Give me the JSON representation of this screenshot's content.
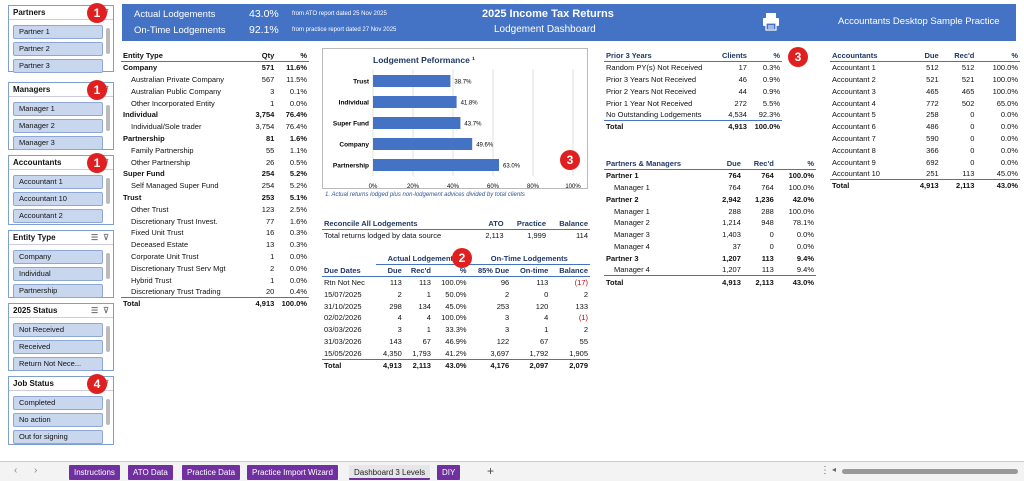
{
  "slicers": [
    {
      "title": "Partners",
      "items": [
        "Partner 1",
        "Partner 2",
        "Partner 3"
      ],
      "badge": "1"
    },
    {
      "title": "Managers",
      "items": [
        "Manager 1",
        "Manager 2",
        "Manager 3"
      ],
      "badge": "1"
    },
    {
      "title": "Accountants",
      "items": [
        "Accountant 1",
        "Accountant 10",
        "Accountant 2"
      ],
      "badge": "1"
    },
    {
      "title": "Entity Type",
      "items": [
        "Company",
        "Individual",
        "Partnership"
      ]
    },
    {
      "title": "2025 Status",
      "items": [
        "Not Received",
        "Received",
        "Return Not Nece..."
      ]
    },
    {
      "title": "Job Status",
      "items": [
        "Completed",
        "No action",
        "Out for signing"
      ],
      "badge": "4"
    }
  ],
  "header": {
    "actual_label": "Actual Lodgements",
    "actual_value": "43.0%",
    "actual_note": "from ATO report dated 25 Nov 2025",
    "ontime_label": "On-Time Lodgements",
    "ontime_value": "92.1%",
    "ontime_note": "from practice report dated 27 Nov 2025",
    "title": "2025 Income Tax Returns",
    "subtitle": "Lodgement Dashboard",
    "printer_icon": "printer-icon",
    "practice": "Accountants Desktop Sample Practice"
  },
  "entity_table": {
    "headers": [
      "Entity Type",
      "Qty",
      "%"
    ],
    "rows": [
      {
        "c": [
          "Company",
          "571",
          "11.6%"
        ],
        "t": "bold"
      },
      {
        "c": [
          "Australian Private Company",
          "567",
          "11.5%"
        ],
        "t": "ind"
      },
      {
        "c": [
          "Australian Public Company",
          "3",
          "0.1%"
        ],
        "t": "ind"
      },
      {
        "c": [
          "Other Incorporated Entity",
          "1",
          "0.0%"
        ],
        "t": "ind"
      },
      {
        "c": [
          "Individual",
          "3,754",
          "76.4%"
        ],
        "t": "bold"
      },
      {
        "c": [
          "Individual/Sole trader",
          "3,754",
          "76.4%"
        ],
        "t": "ind"
      },
      {
        "c": [
          "Partnership",
          "81",
          "1.6%"
        ],
        "t": "bold"
      },
      {
        "c": [
          "Family Partnership",
          "55",
          "1.1%"
        ],
        "t": "ind"
      },
      {
        "c": [
          "Other Partnership",
          "26",
          "0.5%"
        ],
        "t": "ind"
      },
      {
        "c": [
          "Super Fund",
          "254",
          "5.2%"
        ],
        "t": "bold"
      },
      {
        "c": [
          "Self Managed Super Fund",
          "254",
          "5.2%"
        ],
        "t": "ind"
      },
      {
        "c": [
          "Trust",
          "253",
          "5.1%"
        ],
        "t": "bold"
      },
      {
        "c": [
          "Other Trust",
          "123",
          "2.5%"
        ],
        "t": "ind"
      },
      {
        "c": [
          "Discretionary Trust Invest.",
          "77",
          "1.6%"
        ],
        "t": "ind"
      },
      {
        "c": [
          "Fixed Unit Trust",
          "16",
          "0.3%"
        ],
        "t": "ind"
      },
      {
        "c": [
          "Deceased Estate",
          "13",
          "0.3%"
        ],
        "t": "ind"
      },
      {
        "c": [
          "Corporate Unit Trust",
          "1",
          "0.0%"
        ],
        "t": "ind"
      },
      {
        "c": [
          "Discretionary Trust Serv Mgt",
          "2",
          "0.0%"
        ],
        "t": "ind"
      },
      {
        "c": [
          "Hybrid Trust",
          "1",
          "0.0%"
        ],
        "t": "ind"
      },
      {
        "c": [
          "Discretionary Trust Trading",
          "20",
          "0.4%"
        ],
        "t": "ind"
      },
      {
        "c": [
          "Total",
          "4,913",
          "100.0%"
        ],
        "t": "tot"
      }
    ]
  },
  "chart_data": {
    "type": "bar",
    "title": "Lodgement Peformance ¹",
    "categories": [
      "Trust",
      "Individual",
      "Super Fund",
      "Company",
      "Partnership"
    ],
    "values": [
      38.7,
      41.8,
      43.7,
      49.6,
      63.0
    ],
    "value_labels": [
      "38.7%",
      "41.8%",
      "43.7%",
      "49.6%",
      "63.0%"
    ],
    "xlim": [
      0,
      100
    ],
    "xticks": [
      "0%",
      "20%",
      "40%",
      "60%",
      "80%",
      "100%"
    ],
    "footnote": "1. Actual returns lodged plus non-lodgement advices divided by total clients",
    "bar_color": "#4472c4"
  },
  "reconcile": {
    "headers": [
      "Reconcile All Lodgements",
      "ATO",
      "Practice",
      "Balance"
    ],
    "row": [
      "Total returns lodged by data source",
      "2,113",
      "1,999",
      "114"
    ]
  },
  "due_table": {
    "group1": "Actual Lodgements",
    "group2": "On-Time Lodgements",
    "headers": [
      "Due Dates",
      "Due",
      "Rec'd",
      "%",
      "85% Due",
      "On-time",
      "Balance"
    ],
    "rows": [
      [
        "Rtn Not Nec",
        "113",
        "113",
        "100.0%",
        "96",
        "113",
        "(17)"
      ],
      [
        "15/07/2025",
        "2",
        "1",
        "50.0%",
        "2",
        "0",
        "2"
      ],
      [
        "31/10/2025",
        "298",
        "134",
        "45.0%",
        "253",
        "120",
        "133"
      ],
      [
        "02/02/2026",
        "4",
        "4",
        "100.0%",
        "3",
        "4",
        "(1)"
      ],
      [
        "03/03/2026",
        "3",
        "1",
        "33.3%",
        "3",
        "1",
        "2"
      ],
      [
        "31/03/2026",
        "143",
        "67",
        "46.9%",
        "122",
        "67",
        "55"
      ],
      [
        "15/05/2026",
        "4,350",
        "1,793",
        "41.2%",
        "3,697",
        "1,792",
        "1,905"
      ]
    ],
    "total": [
      "Total",
      "4,913",
      "2,113",
      "43.0%",
      "4,176",
      "2,097",
      "2,079"
    ]
  },
  "prior": {
    "headers": [
      "Prior 3 Years",
      "Clients",
      "%"
    ],
    "rows": [
      [
        "Random PY(s) Not Received",
        "17",
        "0.3%"
      ],
      [
        "Prior 3 Years Not Received",
        "46",
        "0.9%"
      ],
      [
        "Prior 2 Years Not Received",
        "44",
        "0.9%"
      ],
      [
        "Prior 1 Year Not Received",
        "272",
        "5.5%"
      ],
      [
        "No Outstanding Lodgements",
        "4,534",
        "92.3%"
      ]
    ],
    "total": [
      "Total",
      "4,913",
      "100.0%"
    ],
    "badge": "3"
  },
  "pm": {
    "headers": [
      "Partners & Managers",
      "Due",
      "Rec'd",
      "%"
    ],
    "rows": [
      {
        "c": [
          "Partner 1",
          "764",
          "764",
          "100.0%"
        ],
        "t": "bold"
      },
      {
        "c": [
          "Manager 1",
          "764",
          "764",
          "100.0%"
        ],
        "t": "ind"
      },
      {
        "c": [
          "Partner 2",
          "2,942",
          "1,236",
          "42.0%"
        ],
        "t": "bold"
      },
      {
        "c": [
          "Manager 1",
          "288",
          "288",
          "100.0%"
        ],
        "t": "ind"
      },
      {
        "c": [
          "Manager 2",
          "1,214",
          "948",
          "78.1%"
        ],
        "t": "ind"
      },
      {
        "c": [
          "Manager 3",
          "1,403",
          "0",
          "0.0%"
        ],
        "t": "ind"
      },
      {
        "c": [
          "Manager 4",
          "37",
          "0",
          "0.0%"
        ],
        "t": "ind"
      },
      {
        "c": [
          "Partner 3",
          "1,207",
          "113",
          "9.4%"
        ],
        "t": "bold"
      },
      {
        "c": [
          "Manager 4",
          "1,207",
          "113",
          "9.4%"
        ],
        "t": "ind"
      },
      {
        "c": [
          "Total",
          "4,913",
          "2,113",
          "43.0%"
        ],
        "t": "tot"
      }
    ],
    "badge": "3"
  },
  "acc": {
    "headers": [
      "Accountants",
      "Due",
      "Rec'd",
      "%"
    ],
    "rows": [
      [
        "Accountant 1",
        "512",
        "512",
        "100.0%"
      ],
      [
        "Accountant 2",
        "521",
        "521",
        "100.0%"
      ],
      [
        "Accountant 3",
        "465",
        "465",
        "100.0%"
      ],
      [
        "Accountant 4",
        "772",
        "502",
        "65.0%"
      ],
      [
        "Accountant 5",
        "258",
        "0",
        "0.0%"
      ],
      [
        "Accountant 6",
        "486",
        "0",
        "0.0%"
      ],
      [
        "Accountant 7",
        "590",
        "0",
        "0.0%"
      ],
      [
        "Accountant 8",
        "366",
        "0",
        "0.0%"
      ],
      [
        "Accountant 9",
        "692",
        "0",
        "0.0%"
      ],
      [
        "Accountant 10",
        "251",
        "113",
        "45.0%"
      ]
    ],
    "total": [
      "Total",
      "4,913",
      "2,113",
      "43.0%"
    ],
    "badge": "3"
  },
  "due_badge": "2",
  "tabs": [
    "Instructions",
    "ATO Data",
    "Practice Data",
    "Practice Import Wizard",
    "Dashboard 3 Levels",
    "DIY"
  ],
  "active_tab": "Dashboard 3 Levels",
  "add_sheet": "+"
}
